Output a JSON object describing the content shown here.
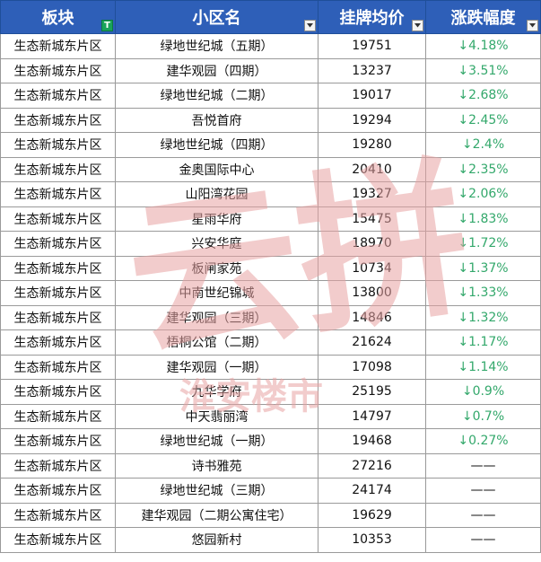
{
  "headers": [
    "板块",
    "小区名",
    "挂牌均价",
    "涨跌幅度"
  ],
  "rows": [
    [
      "生态新城东片区",
      "绿地世纪城（五期）",
      "19751",
      "↓4.18%"
    ],
    [
      "生态新城东片区",
      "建华观园（四期）",
      "13237",
      "↓3.51%"
    ],
    [
      "生态新城东片区",
      "绿地世纪城（二期）",
      "19017",
      "↓2.68%"
    ],
    [
      "生态新城东片区",
      "吾悦首府",
      "19294",
      "↓2.45%"
    ],
    [
      "生态新城东片区",
      "绿地世纪城（四期）",
      "19280",
      "↓2.4%"
    ],
    [
      "生态新城东片区",
      "金奥国际中心",
      "20410",
      "↓2.35%"
    ],
    [
      "生态新城东片区",
      "山阳湾花园",
      "19327",
      "↓2.06%"
    ],
    [
      "生态新城东片区",
      "星雨华府",
      "15475",
      "↓1.83%"
    ],
    [
      "生态新城东片区",
      "兴安华庭",
      "18970",
      "↓1.72%"
    ],
    [
      "生态新城东片区",
      "板闸家苑",
      "10734",
      "↓1.37%"
    ],
    [
      "生态新城东片区",
      "中南世纪锦城",
      "13800",
      "↓1.33%"
    ],
    [
      "生态新城东片区",
      "建华观园（三期）",
      "14846",
      "↓1.32%"
    ],
    [
      "生态新城东片区",
      "梧桐公馆（二期）",
      "21624",
      "↓1.17%"
    ],
    [
      "生态新城东片区",
      "建华观园（一期）",
      "17098",
      "↓1.14%"
    ],
    [
      "生态新城东片区",
      "九华学府",
      "25195",
      "↓0.9%"
    ],
    [
      "生态新城东片区",
      "中天翡丽湾",
      "14797",
      "↓0.7%"
    ],
    [
      "生态新城东片区",
      "绿地世纪城（一期）",
      "19468",
      "↓0.27%"
    ],
    [
      "生态新城东片区",
      "诗书雅苑",
      "27216",
      "——"
    ],
    [
      "生态新城东片区",
      "绿地世纪城（三期）",
      "24174",
      "——"
    ],
    [
      "生态新城东片区",
      "建华观园（二期公寓住宅）",
      "19629",
      "——"
    ],
    [
      "生态新城东片区",
      "悠园新村",
      "10353",
      "——"
    ]
  ],
  "watermark": {
    "main": "云拼",
    "sub": "淮安楼市"
  },
  "colors": {
    "header_bg": "#2e5fb8",
    "down": "#33a86b",
    "watermark": "#e8a3a3"
  },
  "icons": {
    "sort_button": "T",
    "filter_button": "dropdown-arrow-icon"
  }
}
